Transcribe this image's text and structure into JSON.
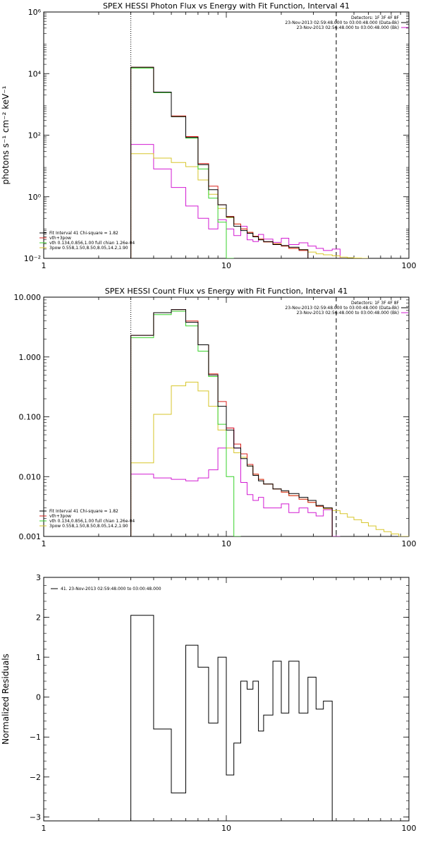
{
  "colors": {
    "black": "#000000",
    "red": "#d9221c",
    "green": "#39d22b",
    "magenta": "#d21bd2",
    "yellow": "#d7c62b"
  },
  "chart_data": [
    {
      "type": "line",
      "title": "SPEX HESSI Photon Flux vs Energy with Fit Function, Interval 41",
      "ylabel": "photons s⁻¹ cm⁻² keV⁻¹",
      "xscale": "log",
      "yscale": "log",
      "xlim": [
        1,
        100
      ],
      "ylim": [
        0.01,
        1000000
      ],
      "xticks": [
        "1",
        "10",
        "100"
      ],
      "yticks": [
        "10⁻²",
        "10⁰",
        "10²",
        "10⁴",
        "10⁶"
      ],
      "ytick_values": [
        0.01,
        1,
        100,
        10000,
        1000000
      ],
      "vlines": [
        {
          "x": 3,
          "style": "dotted"
        },
        {
          "x": 40,
          "style": "dashed"
        }
      ],
      "legend_topright": [
        {
          "text": "Detectors: 1F 3F 4F 8F",
          "color": ""
        },
        {
          "text": "23-Nov-2013 02:59:48.000 to 03:00:48.000 (Data-Bk)",
          "color": "#000000"
        },
        {
          "text": "23-Nov-2013 02:56:48.000 to 03:00:48.000 (Bk)",
          "color": "#d21bd2"
        }
      ],
      "legend_bottomleft": [
        {
          "text": "Fit Interval 41   Chi-square = 1.82",
          "color": "#000000"
        },
        {
          "text": "vth+3pow",
          "color": "#d9221c"
        },
        {
          "text": "vth 0.134,0.856,1.00  full chian 1.26e-04",
          "color": "#39d22b"
        },
        {
          "text": "3pow 0.558,1.50,8.50,8.05,14.2,1.90",
          "color": "#d7c62b"
        }
      ],
      "edges": [
        3,
        4,
        5,
        6,
        7,
        8,
        9,
        10,
        11,
        12,
        13,
        14,
        15,
        16,
        18,
        20,
        22,
        25,
        28,
        31,
        34,
        38,
        42,
        46,
        50,
        55,
        60
      ],
      "series": [
        {
          "color": "#d21bd2",
          "values": [
            50,
            8,
            2,
            0.5,
            0.2,
            0.09,
            0.18,
            0.09,
            0.055,
            0.11,
            0.04,
            0.035,
            0.06,
            0.042,
            0.033,
            0.045,
            0.028,
            0.032,
            0.025,
            0.021,
            0.018,
            0.02
          ]
        },
        {
          "color": "#d7c62b",
          "values": [
            25,
            18,
            13,
            9.5,
            3.5,
            1.2,
            0.42,
            0.21,
            0.13,
            0.09,
            0.07,
            0.052,
            0.042,
            0.034,
            0.03,
            0.025,
            0.021,
            0.019,
            0.016,
            0.014,
            0.013,
            0.012,
            0.011,
            0.0105,
            0.0102,
            0.01
          ]
        },
        {
          "color": "#39d22b",
          "values": [
            15000,
            2400,
            400,
            80,
            8,
            0.9,
            0.15,
            0.01
          ]
        },
        {
          "color": "#d9221c",
          "values": [
            16000,
            2500,
            420,
            90,
            12,
            2.2,
            0.55,
            0.23,
            0.13,
            0.09,
            0.07,
            0.052,
            0.042,
            0.034,
            0.029,
            0.025,
            0.021,
            0.018
          ]
        },
        {
          "color": "#000000",
          "values": [
            16000,
            2500,
            400,
            85,
            11,
            1.7,
            0.55,
            0.22,
            0.11,
            0.08,
            0.065,
            0.05,
            0.04,
            0.035,
            0.028,
            0.026,
            0.023,
            0.019
          ]
        }
      ]
    },
    {
      "type": "line",
      "title": "SPEX HESSI Count Flux vs Energy with Fit Function, Interval 41",
      "ylabel": "",
      "xscale": "log",
      "yscale": "log",
      "xlim": [
        1,
        100
      ],
      "ylim": [
        0.001,
        10
      ],
      "xticks": [
        "1",
        "10",
        "100"
      ],
      "yticks": [
        "0.001",
        "0.010",
        "0.100",
        "1.000",
        "10.000"
      ],
      "ytick_values": [
        0.001,
        0.01,
        0.1,
        1,
        10
      ],
      "vlines": [
        {
          "x": 3,
          "style": "dotted"
        },
        {
          "x": 40,
          "style": "dashed"
        }
      ],
      "legend_topright": [
        {
          "text": "Detectors: 1F 3F 4F 8F",
          "color": ""
        },
        {
          "text": "23-Nov-2013 02:59:48.000 to 03:00:48.000 (Data-Bk)",
          "color": "#000000"
        },
        {
          "text": "23-Nov-2013 02:56:48.000 to 03:00:48.000 (Bk)",
          "color": "#d21bd2"
        }
      ],
      "legend_bottomleft": [
        {
          "text": "Fit Interval 41   Chi-square = 1.82",
          "color": "#000000"
        },
        {
          "text": "vth+3pow",
          "color": "#d9221c"
        },
        {
          "text": "vth 0.134,0.856,1.00  full chian 1.26e-04",
          "color": "#39d22b"
        },
        {
          "text": "3pow 0.558,1.50,8.50,8.05,14.2,1.90",
          "color": "#d7c62b"
        }
      ],
      "edges": [
        3,
        4,
        5,
        6,
        7,
        8,
        9,
        10,
        11,
        12,
        13,
        14,
        15,
        16,
        18,
        20,
        22,
        25,
        28,
        31,
        34,
        38,
        42,
        46,
        50,
        55,
        60,
        66,
        73,
        80,
        88,
        96,
        100
      ],
      "series": [
        {
          "color": "#d21bd2",
          "values": [
            0.011,
            0.0095,
            0.009,
            0.0085,
            0.0095,
            0.013,
            0.03,
            0.065,
            0.03,
            0.008,
            0.005,
            0.004,
            0.0045,
            0.003,
            0.003,
            0.0035,
            0.0025,
            0.003,
            0.0025,
            0.0022,
            0.0028,
            0.001
          ]
        },
        {
          "color": "#d7c62b",
          "values": [
            0.017,
            0.11,
            0.33,
            0.38,
            0.27,
            0.15,
            0.06,
            0.03,
            0.025,
            0.021,
            0.015,
            0.011,
            0.009,
            0.0075,
            0.0062,
            0.0055,
            0.0048,
            0.0042,
            0.0037,
            0.0032,
            0.0029,
            0.0027,
            0.0024,
            0.0021,
            0.0019,
            0.0017,
            0.0015,
            0.0013,
            0.0012,
            0.0011,
            0.001,
            0.001
          ]
        },
        {
          "color": "#39d22b",
          "values": [
            2.1,
            5.1,
            5.8,
            3.3,
            1.25,
            0.47,
            0.075,
            0.01,
            0.001
          ]
        },
        {
          "color": "#d9221c",
          "values": [
            2.3,
            5.5,
            6.2,
            4,
            1.6,
            0.52,
            0.18,
            0.065,
            0.035,
            0.024,
            0.016,
            0.011,
            0.009,
            0.0075,
            0.0062,
            0.0055,
            0.0048,
            0.0042,
            0.0037,
            0.0032,
            0.003
          ]
        },
        {
          "color": "#000000",
          "values": [
            2.3,
            5.5,
            6.2,
            3.8,
            1.6,
            0.5,
            0.15,
            0.06,
            0.03,
            0.02,
            0.015,
            0.0105,
            0.0085,
            0.0075,
            0.0062,
            0.0058,
            0.0052,
            0.0045,
            0.004,
            0.0033,
            0.003
          ]
        }
      ]
    },
    {
      "type": "line",
      "title": "",
      "ylabel": "Normalized Residuals",
      "xscale": "log",
      "yscale": "linear",
      "xlim": [
        1,
        100
      ],
      "ylim": [
        -3.1,
        3
      ],
      "xticks": [
        "1",
        "10",
        "100"
      ],
      "yticks": [
        "−3",
        "−2",
        "−1",
        "0",
        "1",
        "2",
        "3"
      ],
      "ytick_values": [
        -3,
        -2,
        -1,
        0,
        1,
        2,
        3
      ],
      "legend_topleft": [
        {
          "text": "41. 23-Nov-2013 02:59:48.000 to 03:00:48.000",
          "color": "#000000"
        }
      ],
      "edges": [
        3,
        4,
        5,
        6,
        7,
        8,
        9,
        10,
        11,
        12,
        13,
        14,
        15,
        16,
        18,
        20,
        22,
        25,
        28,
        31,
        34,
        38,
        42
      ],
      "series": [
        {
          "color": "#000000",
          "values": [
            2.05,
            -0.8,
            -2.4,
            1.3,
            0.75,
            -0.65,
            1.0,
            -1.95,
            -1.15,
            0.4,
            0.2,
            0.4,
            -0.85,
            -0.45,
            0.9,
            -0.4,
            0.9,
            -0.4,
            0.5,
            -0.3,
            -0.1
          ]
        }
      ]
    }
  ]
}
